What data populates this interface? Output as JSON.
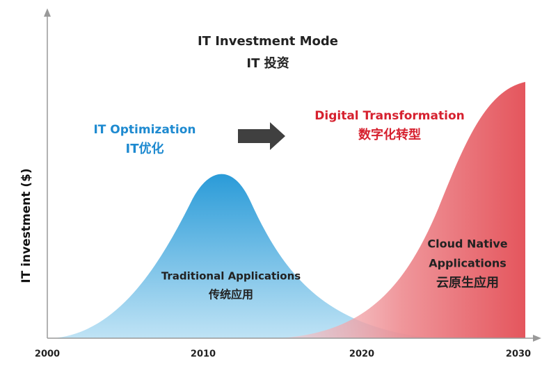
{
  "title": {
    "en": "IT Investment Mode",
    "zh": "IT 投资"
  },
  "y_axis_label": "IT investment ($)",
  "x_axis_ticks": [
    "2000",
    "2010",
    "2020",
    "2030"
  ],
  "phases": [
    {
      "title": "IT Optimization",
      "subtitle": "IT优化",
      "curve_label": [
        "Traditional Applications",
        "传统应用"
      ]
    },
    {
      "title": "Digital Transformation",
      "subtitle": "数字化转型",
      "curve_label": [
        "Cloud Native",
        "Applications",
        "云原生应用"
      ]
    }
  ]
}
